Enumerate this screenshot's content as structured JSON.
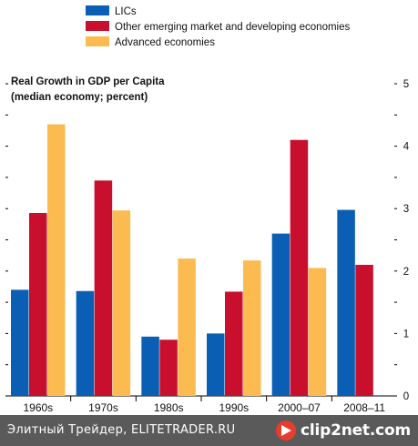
{
  "chart_data": {
    "type": "bar",
    "title": "Real Growth in GDP per Capita",
    "subtitle": "(median economy; percent)",
    "categories": [
      "1960s",
      "1970s",
      "1980s",
      "1990s",
      "2000–07",
      "2008–11"
    ],
    "series": [
      {
        "name": "LICs",
        "color": "#0a5fb4",
        "values": [
          1.7,
          1.68,
          0.95,
          1.0,
          2.6,
          2.98
        ]
      },
      {
        "name": "Other emerging market and developing economies",
        "color": "#c8102e",
        "values": [
          2.93,
          3.45,
          0.9,
          1.67,
          4.1,
          2.1
        ]
      },
      {
        "name": "Advanced economies",
        "color": "#fbbb50",
        "values": [
          4.35,
          2.97,
          2.2,
          2.17,
          2.05,
          0.0
        ]
      }
    ],
    "ylim": [
      0,
      5
    ],
    "yticks": [
      0,
      1,
      2,
      3,
      4,
      5
    ],
    "grid": false,
    "legend_position": "top-left"
  },
  "footer": {
    "watermark_text": "Элитный Трейдер, ELITETRADER.RU",
    "logo_text": "clip2net.com"
  }
}
